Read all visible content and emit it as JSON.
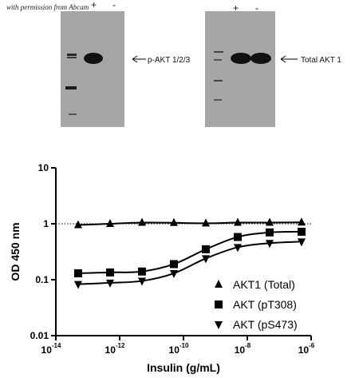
{
  "western_blot": {
    "permission_note": "with permission from Abcam",
    "left_panel": {
      "lanes": [
        "+",
        "-"
      ],
      "label": "p-AKT 1/2/3"
    },
    "right_panel": {
      "lanes": [
        "+",
        "-"
      ],
      "label": "Total AKT 1"
    }
  },
  "chart_data": {
    "type": "scatter",
    "xlabel": "Insulin (g/mL)",
    "ylabel": "OD 450 nm",
    "x_scale": "log",
    "y_scale": "log",
    "xlim": [
      1e-14,
      1e-06
    ],
    "ylim": [
      0.01,
      10
    ],
    "x_ticks": [
      {
        "base": "10",
        "exp": "-14"
      },
      {
        "base": "10",
        "exp": "-12"
      },
      {
        "base": "10",
        "exp": "-10"
      },
      {
        "base": "10",
        "exp": "-8"
      },
      {
        "base": "10",
        "exp": "-6"
      }
    ],
    "y_ticks": [
      "10",
      "1",
      "0.1",
      "0.01"
    ],
    "reference_line": {
      "y": 1,
      "style": "dotted"
    },
    "legend_position": "bottom-right",
    "series": [
      {
        "name": "AKT1 (Total)",
        "marker": "triangle-up",
        "x": [
          5e-14,
          5e-13,
          5e-12,
          5e-11,
          5e-10,
          5e-09,
          5e-08,
          5e-07
        ],
        "y": [
          0.95,
          1.0,
          1.05,
          1.04,
          1.02,
          1.05,
          1.05,
          1.06
        ]
      },
      {
        "name": "AKT (pT308)",
        "marker": "square",
        "x": [
          5e-14,
          5e-13,
          5e-12,
          5e-11,
          5e-10,
          5e-09,
          5e-08,
          5e-07
        ],
        "y": [
          0.13,
          0.135,
          0.14,
          0.19,
          0.35,
          0.58,
          0.7,
          0.72
        ]
      },
      {
        "name": "AKT (pS473)",
        "marker": "triangle-down",
        "x": [
          5e-14,
          5e-13,
          5e-12,
          5e-11,
          5e-10,
          5e-09,
          5e-08,
          5e-07
        ],
        "y": [
          0.083,
          0.088,
          0.095,
          0.13,
          0.24,
          0.38,
          0.45,
          0.48
        ]
      }
    ]
  }
}
